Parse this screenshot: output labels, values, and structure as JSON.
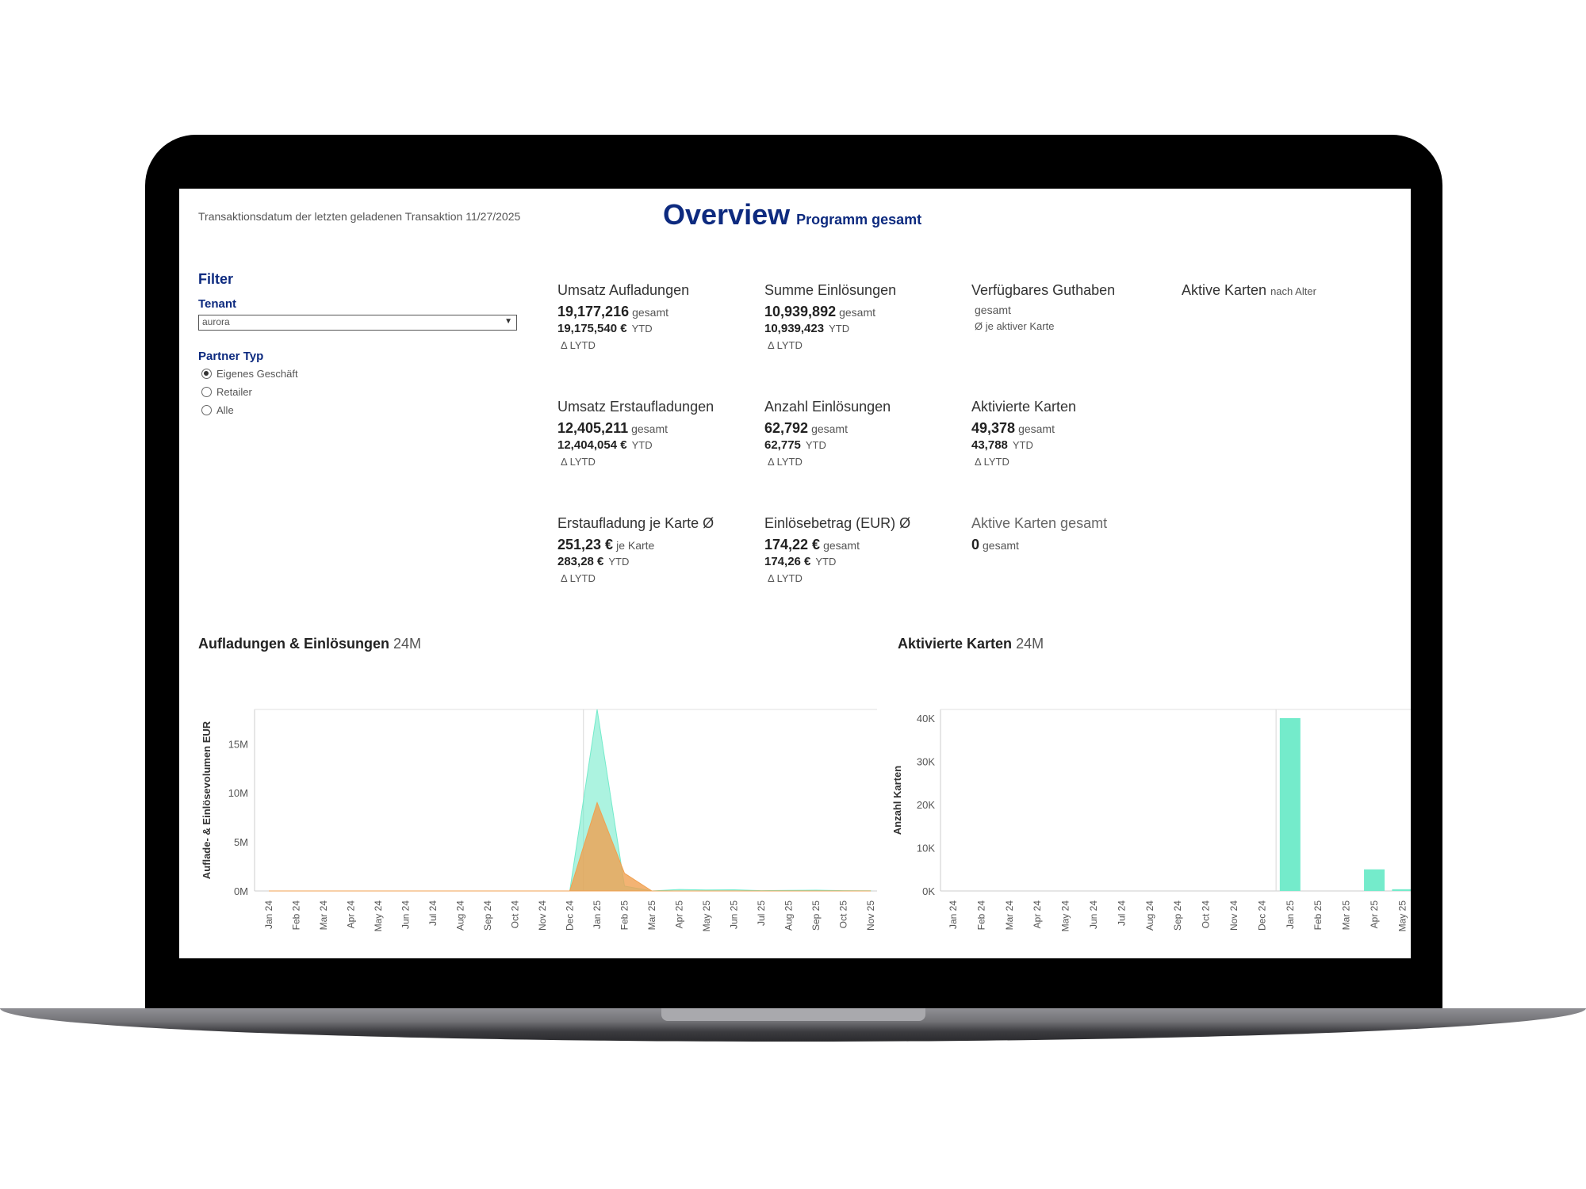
{
  "header": {
    "last_transaction": "Transaktionsdatum der letzten geladenen Transaktion 11/27/2025",
    "title": "Overview",
    "subtitle": "Programm gesamt"
  },
  "filter": {
    "heading": "Filter",
    "tenant_label": "Tenant",
    "tenant_value": "aurora",
    "partner_label": "Partner Typ",
    "partner_options": [
      "Eigenes Geschäft",
      "Retailer",
      "Alle"
    ],
    "partner_selected": "Eigenes Geschäft"
  },
  "kpis": {
    "umsatz_aufladungen": {
      "title": "Umsatz Aufladungen",
      "total": "19,177,216",
      "total_unit": "gesamt",
      "ytd": "19,175,540 €",
      "ytd_unit": "YTD",
      "lytd": "Δ LYTD"
    },
    "summe_einloesungen": {
      "title": "Summe Einlösungen",
      "total": "10,939,892",
      "total_unit": "gesamt",
      "ytd": "10,939,423",
      "ytd_unit": "YTD",
      "lytd": "Δ LYTD"
    },
    "verfuegbares_guthaben": {
      "title": "Verfügbares Guthaben",
      "total_unit": "gesamt",
      "per_card": "Ø je aktiver Karte"
    },
    "aktive_karten_alter": {
      "title": "Aktive Karten",
      "subtitle": "nach Alter"
    },
    "umsatz_erstaufladungen": {
      "title": "Umsatz Erstaufladungen",
      "total": "12,405,211",
      "total_unit": "gesamt",
      "ytd": "12,404,054 €",
      "ytd_unit": "YTD",
      "lytd": "Δ LYTD"
    },
    "anzahl_einloesungen": {
      "title": "Anzahl Einlösungen",
      "total": "62,792",
      "total_unit": "gesamt",
      "ytd": "62,775",
      "ytd_unit": "YTD",
      "lytd": "Δ LYTD"
    },
    "aktivierte_karten": {
      "title": "Aktivierte Karten",
      "total": "49,378",
      "total_unit": "gesamt",
      "ytd": "43,788",
      "ytd_unit": "YTD",
      "lytd": "Δ LYTD"
    },
    "erstaufladung_je_karte": {
      "title": "Erstaufladung je Karte Ø",
      "total": "251,23 €",
      "total_unit": "je Karte",
      "ytd": "283,28 €",
      "ytd_unit": "YTD",
      "lytd": "Δ LYTD"
    },
    "einloesebetrag": {
      "title": "Einlösebetrag (EUR) Ø",
      "total": "174,22 €",
      "total_unit": "gesamt",
      "ytd": "174,26 €",
      "ytd_unit": "YTD",
      "lytd": "Δ LYTD"
    },
    "aktive_karten_gesamt": {
      "title": "Aktive Karten gesamt",
      "total": "0",
      "total_unit": "gesamt"
    }
  },
  "colors": {
    "teal": "#74ebcb",
    "orange": "#f0a050",
    "title_blue": "#0d2a7f"
  },
  "chart_data": [
    {
      "type": "area",
      "title": "Aufladungen & Einlösungen",
      "subtitle": "24M",
      "ylabel": "Auflade- & Einlösevolumen EUR",
      "ylim": [
        0,
        18500000
      ],
      "yticks": [
        0,
        5000000,
        10000000,
        15000000
      ],
      "ytick_labels": [
        "0M",
        "5M",
        "10M",
        "15M"
      ],
      "x": [
        "Jan 24",
        "Feb 24",
        "Mar 24",
        "Apr 24",
        "May 24",
        "Jun 24",
        "Jul 24",
        "Aug 24",
        "Sep 24",
        "Oct 24",
        "Nov 24",
        "Dec 24",
        "Jan 25",
        "Feb 25",
        "Mar 25",
        "Apr 25",
        "May 25",
        "Jun 25",
        "Jul 25",
        "Aug 25",
        "Sep 25",
        "Oct 25",
        "Nov 25"
      ],
      "series": [
        {
          "color": "#74ebcb",
          "values": [
            0,
            0,
            0,
            0,
            0,
            0,
            0,
            0,
            0,
            0,
            0,
            0,
            18500000,
            500000,
            0,
            150000,
            100000,
            120000,
            30000,
            60000,
            80000,
            30000,
            20000
          ]
        },
        {
          "color": "#f0a050",
          "values": [
            0,
            0,
            0,
            0,
            0,
            0,
            0,
            0,
            0,
            0,
            0,
            0,
            9000000,
            1800000,
            0,
            0,
            0,
            0,
            0,
            0,
            0,
            0,
            0
          ]
        }
      ],
      "grid": false
    },
    {
      "type": "bar",
      "title": "Aktivierte Karten",
      "subtitle": "24M",
      "ylabel": "Anzahl Karten",
      "ylim": [
        0,
        40000
      ],
      "yticks": [
        0,
        10000,
        20000,
        30000,
        40000
      ],
      "ytick_labels": [
        "0K",
        "10K",
        "20K",
        "30K",
        "40K"
      ],
      "categories": [
        "Jan 24",
        "Feb 24",
        "Mar 24",
        "Apr 24",
        "May 24",
        "Jun 24",
        "Jul 24",
        "Aug 24",
        "Sep 24",
        "Oct 24",
        "Nov 24",
        "Dec 24",
        "Jan 25",
        "Feb 25",
        "Mar 25",
        "Apr 25",
        "May 25"
      ],
      "values": [
        0,
        0,
        0,
        0,
        0,
        0,
        0,
        0,
        0,
        0,
        0,
        0,
        40000,
        0,
        0,
        5000,
        400
      ],
      "color": "#74ebcb",
      "grid": false
    }
  ]
}
